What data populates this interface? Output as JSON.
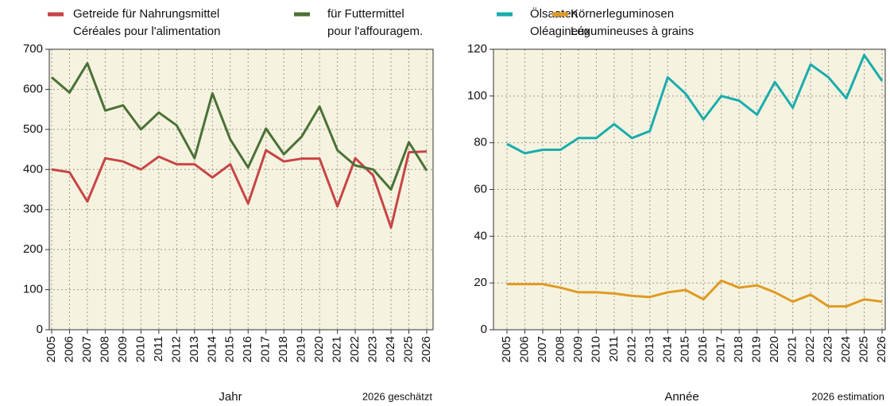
{
  "chart_data": [
    {
      "type": "line",
      "x_label": "Jahr",
      "note": "2026 geschätzt",
      "categories": [
        "2005",
        "2006",
        "2007",
        "2008",
        "2009",
        "2010",
        "2011",
        "2012",
        "2013",
        "2014",
        "2015",
        "2016",
        "2017",
        "2018",
        "2019",
        "2020",
        "2021",
        "2022",
        "2023",
        "2024",
        "2025",
        "2026"
      ],
      "series": [
        {
          "name": "Getreide für Nahrungsmittel",
          "name_fr": "Céréales pour l'alimentation",
          "color": "#c84446",
          "values": [
            400,
            393,
            320,
            428,
            420,
            400,
            432,
            413,
            413,
            380,
            413,
            315,
            448,
            420,
            427,
            427,
            308,
            428,
            385,
            255,
            443,
            445
          ]
        },
        {
          "name": "für Futtermittel",
          "name_fr": "pour l'affouragem.",
          "color": "#4a7135",
          "values": [
            630,
            592,
            665,
            547,
            560,
            500,
            542,
            510,
            428,
            590,
            475,
            405,
            502,
            438,
            482,
            557,
            448,
            410,
            400,
            350,
            468,
            397
          ]
        }
      ],
      "ylim": [
        0,
        700
      ],
      "yticks": [
        0,
        100,
        200,
        300,
        400,
        500,
        600,
        700
      ],
      "grid": true
    },
    {
      "type": "line",
      "x_label": "Année",
      "note": "2026 estimation",
      "categories": [
        "2005",
        "2006",
        "2007",
        "2008",
        "2009",
        "2010",
        "2011",
        "2012",
        "2013",
        "2014",
        "2015",
        "2016",
        "2017",
        "2018",
        "2019",
        "2020",
        "2021",
        "2022",
        "2023",
        "2024",
        "2025",
        "2026"
      ],
      "series": [
        {
          "name": "Ölsaaten",
          "name_fr": "Oléagineux",
          "color": "#1aacac",
          "values": [
            79.5,
            75.5,
            77,
            77,
            82,
            82,
            88,
            82,
            85,
            108,
            101,
            90,
            100,
            98,
            92,
            106,
            95,
            113.5,
            108,
            99,
            117.5,
            106.5
          ]
        },
        {
          "name": "Körnerleguminosen",
          "name_fr": "Légumineuses à grains",
          "color": "#e09a22",
          "values": [
            19.5,
            19.5,
            19.5,
            18,
            16,
            16,
            15.5,
            14.5,
            14,
            16,
            17,
            13,
            21,
            18,
            19,
            16,
            12,
            15,
            10,
            10,
            13,
            12
          ]
        }
      ],
      "ylim": [
        0,
        120
      ],
      "yticks": [
        0,
        20,
        40,
        60,
        80,
        100,
        120
      ],
      "grid": true
    }
  ]
}
